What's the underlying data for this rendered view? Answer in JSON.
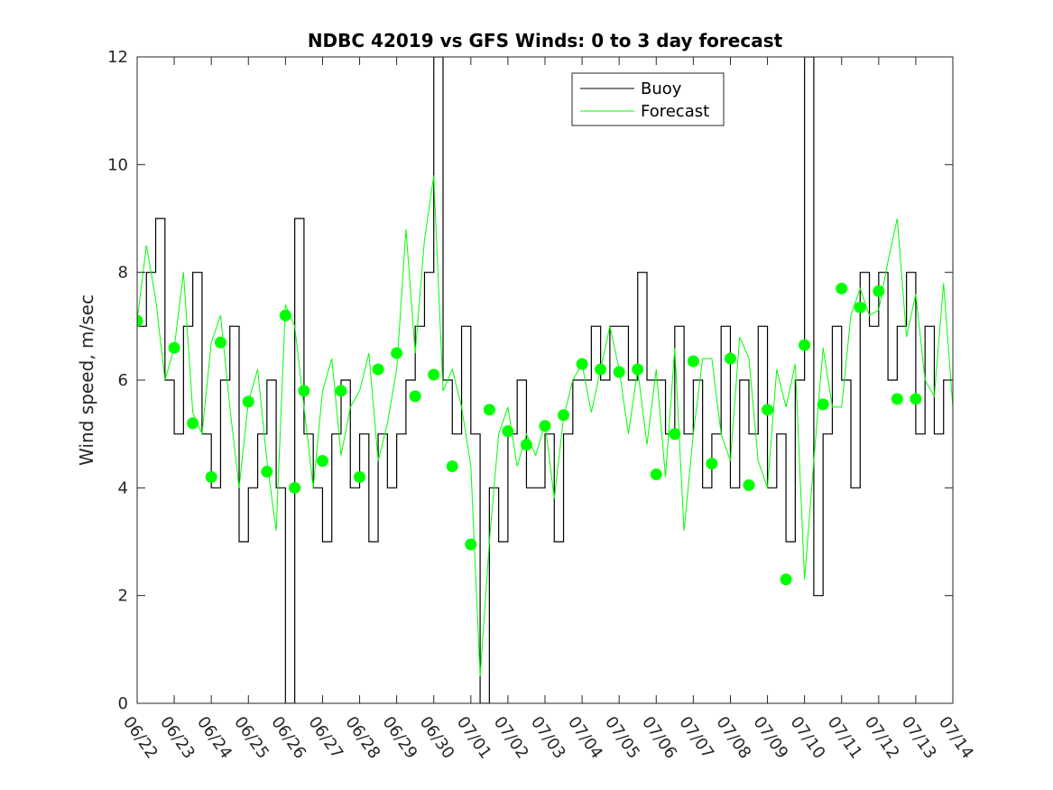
{
  "chart_data": {
    "type": "line",
    "title": "NDBC 42019 vs GFS Winds: 0 to 3 day forecast",
    "xlabel": "",
    "ylabel": "Wind speed, m/sec",
    "ylim": [
      0,
      12
    ],
    "yticks": [
      "0",
      "2",
      "4",
      "6",
      "8",
      "10",
      "12"
    ],
    "x_unit": "date (MM/DD)",
    "xlim": [
      "06/22",
      "07/14"
    ],
    "xticks": [
      "06/22",
      "06/23",
      "06/24",
      "06/25",
      "06/26",
      "06/27",
      "06/28",
      "06/29",
      "06/30",
      "07/01",
      "07/02",
      "07/03",
      "07/04",
      "07/05",
      "07/06",
      "07/07",
      "07/08",
      "07/09",
      "07/10",
      "07/11",
      "07/12",
      "07/13",
      "07/14"
    ],
    "legend": {
      "position": "top-right",
      "entries": [
        "Buoy",
        "Forecast"
      ]
    },
    "grid": false,
    "colors": {
      "buoy": "#000000",
      "forecast": "#00ff00",
      "axis": "#262626"
    },
    "series": [
      {
        "name": "Buoy",
        "style": "step",
        "x": [
          "06/22",
          "06/22 06h",
          "06/22 12h",
          "06/22 18h",
          "06/23",
          "06/23 06h",
          "06/23 12h",
          "06/23 18h",
          "06/24",
          "06/24 06h",
          "06/24 12h",
          "06/24 18h",
          "06/25",
          "06/25 06h",
          "06/25 12h",
          "06/25 18h",
          "06/26",
          "06/26 06h",
          "06/26 12h",
          "06/26 18h",
          "06/27",
          "06/27 06h",
          "06/27 12h",
          "06/27 18h",
          "06/28",
          "06/28 06h",
          "06/28 12h",
          "06/28 18h",
          "06/29",
          "06/29 06h",
          "06/29 12h",
          "06/29 18h",
          "06/30",
          "06/30 06h",
          "06/30 12h",
          "06/30 18h",
          "07/01",
          "07/01 06h",
          "07/01 12h",
          "07/01 18h",
          "07/02",
          "07/02 06h",
          "07/02 12h",
          "07/02 18h",
          "07/03",
          "07/03 06h",
          "07/03 12h",
          "07/03 18h",
          "07/04",
          "07/04 06h",
          "07/04 12h",
          "07/04 18h",
          "07/05",
          "07/05 06h",
          "07/05 12h",
          "07/05 18h",
          "07/06",
          "07/06 06h",
          "07/06 12h",
          "07/06 18h",
          "07/07",
          "07/07 06h",
          "07/07 12h",
          "07/07 18h",
          "07/08",
          "07/08 06h",
          "07/08 12h",
          "07/08 18h",
          "07/09",
          "07/09 06h",
          "07/09 12h",
          "07/09 18h",
          "07/10",
          "07/10 06h",
          "07/10 12h",
          "07/10 18h",
          "07/11",
          "07/11 06h",
          "07/11 12h",
          "07/11 18h",
          "07/12",
          "07/12 06h",
          "07/12 12h",
          "07/12 18h",
          "07/13",
          "07/13 06h",
          "07/13 12h",
          "07/13 18h",
          "07/14"
        ],
        "values": [
          7,
          8,
          9,
          6,
          5,
          7,
          8,
          5,
          4,
          6,
          7,
          3,
          4,
          5,
          6,
          4,
          0,
          9,
          5,
          4,
          3,
          5,
          6,
          4,
          5,
          3,
          5,
          4,
          5,
          6,
          7,
          8,
          12,
          6,
          5,
          7,
          5,
          0,
          4,
          3,
          5,
          6,
          4,
          4,
          5,
          3,
          5,
          6,
          6,
          7,
          6,
          7,
          7,
          6,
          8,
          6,
          6,
          5,
          7,
          5,
          6,
          4,
          5,
          7,
          4,
          6,
          5,
          7,
          4,
          5,
          3,
          6,
          12,
          2,
          5,
          7,
          6,
          4,
          8,
          7,
          8,
          6,
          7,
          8,
          5,
          7,
          5,
          6,
          6
        ]
      },
      {
        "name": "Forecast",
        "style": "lines",
        "x": [
          "06/22",
          "06/22 06h",
          "06/22 12h",
          "06/22 18h",
          "06/23",
          "06/23 06h",
          "06/23 12h",
          "06/23 18h",
          "06/24",
          "06/24 06h",
          "06/24 12h",
          "06/24 18h",
          "06/25",
          "06/25 06h",
          "06/25 12h",
          "06/25 18h",
          "06/26",
          "06/26 06h",
          "06/26 12h",
          "06/26 18h",
          "06/27",
          "06/27 06h",
          "06/27 12h",
          "06/27 18h",
          "06/28",
          "06/28 06h",
          "06/28 12h",
          "06/28 18h",
          "06/29",
          "06/29 06h",
          "06/29 12h",
          "06/29 18h",
          "06/30",
          "06/30 06h",
          "06/30 12h",
          "06/30 18h",
          "07/01",
          "07/01 06h",
          "07/01 12h",
          "07/01 18h",
          "07/02",
          "07/02 06h",
          "07/02 12h",
          "07/02 18h",
          "07/03",
          "07/03 06h",
          "07/03 12h",
          "07/03 18h",
          "07/04",
          "07/04 06h",
          "07/04 12h",
          "07/04 18h",
          "07/05",
          "07/05 06h",
          "07/05 12h",
          "07/05 18h",
          "07/06",
          "07/06 06h",
          "07/06 12h",
          "07/06 18h",
          "07/07",
          "07/07 06h",
          "07/07 12h",
          "07/07 18h",
          "07/08",
          "07/08 06h",
          "07/08 12h",
          "07/08 18h",
          "07/09",
          "07/09 06h",
          "07/09 12h",
          "07/09 18h",
          "07/10",
          "07/10 06h",
          "07/10 12h",
          "07/10 18h",
          "07/11",
          "07/11 06h",
          "07/11 12h",
          "07/11 18h",
          "07/12",
          "07/12 06h",
          "07/12 12h",
          "07/12 18h",
          "07/13",
          "07/13 06h",
          "07/13 12h",
          "07/13 18h",
          "07/14"
        ],
        "values": [
          7.1,
          8.5,
          7.5,
          6.0,
          6.6,
          8.0,
          5.4,
          5.0,
          6.7,
          7.2,
          5.5,
          4.0,
          5.6,
          6.2,
          4.5,
          3.2,
          7.4,
          7.0,
          5.5,
          4.0,
          5.8,
          6.4,
          4.6,
          5.5,
          5.8,
          6.5,
          4.5,
          5.2,
          6.2,
          8.8,
          6.5,
          8.6,
          9.8,
          5.8,
          6.2,
          5.5,
          4.4,
          0.5,
          3.0,
          5.0,
          5.5,
          4.4,
          5.0,
          4.6,
          5.2,
          3.8,
          5.3,
          6.0,
          6.3,
          5.4,
          6.2,
          7.0,
          6.2,
          5.0,
          6.2,
          4.8,
          6.2,
          4.2,
          6.6,
          3.2,
          5.0,
          6.4,
          6.4,
          5.0,
          4.5,
          6.8,
          6.4,
          4.5,
          4.0,
          6.2,
          5.5,
          6.3,
          2.3,
          4.5,
          6.6,
          5.5,
          5.5,
          7.2,
          7.7,
          7.2,
          7.3,
          8.2,
          9.0,
          6.8,
          7.6,
          6.0,
          5.7,
          7.8,
          5.5
        ]
      },
      {
        "name": "",
        "style": "markers",
        "x": [
          "06/22",
          "06/23",
          "06/23 12h",
          "06/24",
          "06/24 06h",
          "06/25",
          "06/25 12h",
          "06/26",
          "06/26 06h",
          "06/26 12h",
          "06/27",
          "06/27 12h",
          "06/28",
          "06/28 12h",
          "06/29",
          "06/29 12h",
          "06/30",
          "06/30 12h",
          "07/01",
          "07/01 12h",
          "07/02",
          "07/02 12h",
          "07/03",
          "07/03 12h",
          "07/04",
          "07/04 12h",
          "07/05",
          "07/05 12h",
          "07/06",
          "07/06 12h",
          "07/07",
          "07/07 12h",
          "07/08",
          "07/08 12h",
          "07/09",
          "07/09 12h",
          "07/10",
          "07/10 12h",
          "07/11",
          "07/11 12h",
          "07/12",
          "07/12 12h",
          "07/13"
        ],
        "values": [
          7.1,
          6.6,
          5.2,
          4.2,
          6.7,
          5.6,
          4.3,
          7.2,
          4.0,
          5.8,
          4.5,
          5.8,
          4.2,
          6.2,
          6.5,
          5.7,
          6.1,
          4.4,
          2.95,
          5.45,
          5.05,
          4.8,
          5.15,
          5.35,
          6.3,
          6.2,
          6.15,
          6.2,
          4.25,
          5.0,
          6.35,
          4.45,
          6.4,
          4.05,
          5.45,
          2.3,
          6.65,
          5.55,
          7.7,
          7.35,
          7.65,
          5.65,
          5.65
        ]
      }
    ]
  }
}
